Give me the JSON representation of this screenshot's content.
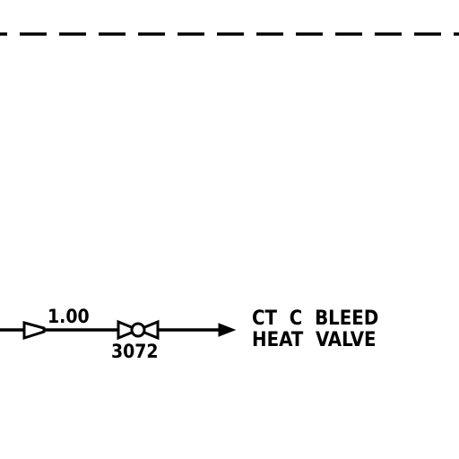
{
  "diagram": {
    "reducer_size": "1.00",
    "valve_tag": "3072",
    "destination": {
      "line1": "CT  C  BLEED",
      "line2": "HEAT  VALVE"
    }
  },
  "colors": {
    "line": "#000000",
    "background": "#ffffff"
  }
}
